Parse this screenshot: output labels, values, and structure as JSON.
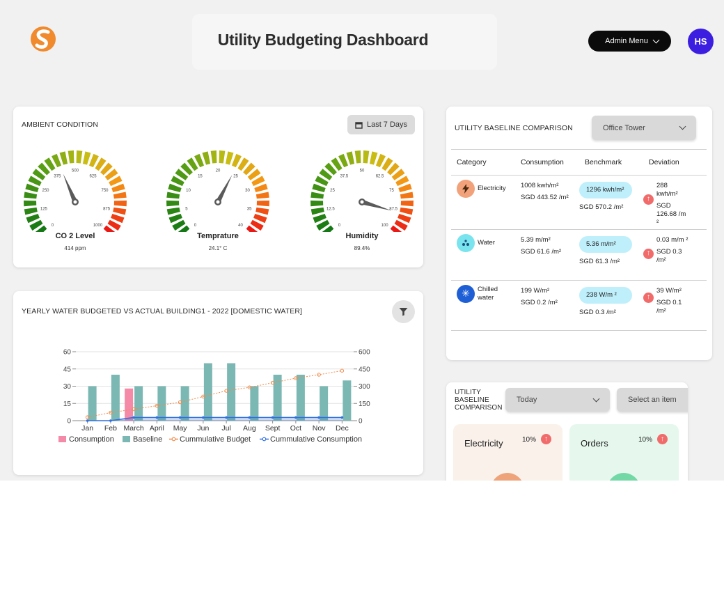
{
  "header": {
    "title": "Utility Budgeting Dashboard",
    "admin_menu_label": "Admin Menu",
    "avatar_initials": "HS",
    "brand_color": "#f08a2c",
    "avatar_color": "#3b1ee0"
  },
  "ambient": {
    "title": "AMBIENT CONDITION",
    "period_label": "Last 7 Days",
    "gauges": [
      {
        "label": "CO 2 Level",
        "value_text": "414 ppm",
        "value": 414,
        "min": 0,
        "max": 1000,
        "ticks": [
          "0",
          "125",
          "250",
          "375",
          "500",
          "625",
          "750",
          "875",
          "1000"
        ]
      },
      {
        "label": "Temprature",
        "value_text": "24.1° C",
        "value": 24.1,
        "min": 0,
        "max": 40,
        "ticks": [
          "0",
          "5",
          "10",
          "15",
          "20",
          "25",
          "30",
          "35",
          "40"
        ]
      },
      {
        "label": "Humidity",
        "value_text": "89.4%",
        "value": 89.4,
        "min": 0,
        "max": 100,
        "ticks": [
          "0",
          "12.5",
          "25",
          "37.5",
          "50",
          "62.5",
          "75",
          "87.5",
          "100"
        ]
      }
    ]
  },
  "water_chart": {
    "title": "YEARLY WATER BUDGETED VS ACTUAL BUILDING1 - 2022 [DOMESTIC WATER]"
  },
  "chart_data": {
    "type": "bar",
    "title": "YEARLY WATER BUDGETED VS ACTUAL BUILDING1 - 2022 [DOMESTIC WATER]",
    "categories": [
      "Jan",
      "Feb",
      "March",
      "April",
      "May",
      "Jun",
      "Jul",
      "Aug",
      "Sept",
      "Oct",
      "Nov",
      "Dec"
    ],
    "y_left": {
      "ticks": [
        0,
        15,
        30,
        45,
        60
      ],
      "range": [
        0,
        60
      ]
    },
    "y_right": {
      "ticks": [
        0,
        150,
        300,
        450,
        600
      ],
      "range": [
        0,
        600
      ]
    },
    "series": [
      {
        "name": "Consumption",
        "kind": "bar",
        "axis": "left",
        "color": "#f48aa8",
        "values": [
          0,
          0,
          28,
          0,
          0,
          0,
          0,
          0,
          0,
          0,
          0,
          0
        ]
      },
      {
        "name": "Baseline",
        "kind": "bar",
        "axis": "left",
        "color": "#7bb8b3",
        "values": [
          30,
          40,
          30,
          30,
          30,
          50,
          50,
          30,
          40,
          40,
          30,
          35
        ]
      },
      {
        "name": "Cummulative Budget",
        "kind": "line",
        "axis": "right",
        "color": "#f28a4a",
        "values": [
          30,
          70,
          100,
          130,
          160,
          210,
          260,
          290,
          330,
          370,
          400,
          435
        ]
      },
      {
        "name": "Cummulative Consumption",
        "kind": "line",
        "axis": "right",
        "color": "#2f6fe0",
        "values": [
          0,
          0,
          28,
          28,
          28,
          28,
          28,
          28,
          28,
          28,
          28,
          28
        ]
      }
    ],
    "legend_position": "bottom"
  },
  "baseline": {
    "title": "UTILITY BASELINE COMPARISON",
    "building_select": "Office Tower",
    "columns": [
      "Category",
      "Consumption",
      "Benchmark",
      "Deviation"
    ],
    "rows": [
      {
        "icon": "bolt-icon",
        "icon_bg": "#f2a27a",
        "category": "Electricity",
        "consumption1": "1008 kwh/m²",
        "consumption2": "SGD 443.52 /m²",
        "benchmark1": "1296 kwh/m²",
        "benchmark2": "SGD 570.2 /m²",
        "deviation1": "288 kwh/m²",
        "deviation2": "SGD 126.68 /m ²"
      },
      {
        "icon": "water-drops-icon",
        "icon_bg": "#79e3ee",
        "category": "Water",
        "consumption1": "5.39 m/m²",
        "consumption2": "SGD 61.6 /m²",
        "benchmark1": "5.36 m/m²",
        "benchmark2": "SGD 61.3 /m²",
        "deviation1": "0.03 m/m ²",
        "deviation2": "SGD 0.3 /m²"
      },
      {
        "icon": "snowflake-icon",
        "icon_bg": "#1f5fd6",
        "category": "Chilled water",
        "consumption1": "199 W/m²",
        "consumption2": "SGD 0.2 /m²",
        "benchmark1": "238 W/m ²",
        "benchmark2": "SGD 0.3 /m²",
        "deviation1": "39 W/m²",
        "deviation2": "SGD 0.1 /m²"
      }
    ]
  },
  "comparison2": {
    "title_line1": "UTILITY",
    "title_line2": "BASELINE",
    "title_line3": "COMPARISON",
    "period_select": "Today",
    "item_select": "Select an item",
    "cards": [
      {
        "label": "Electricity",
        "pct": "10%",
        "bg": "#f9f1ea",
        "ball": "#eea37a"
      },
      {
        "label": "Orders",
        "pct": "10%",
        "bg": "#e6f8ee",
        "ball": "#72d9a6"
      }
    ]
  }
}
